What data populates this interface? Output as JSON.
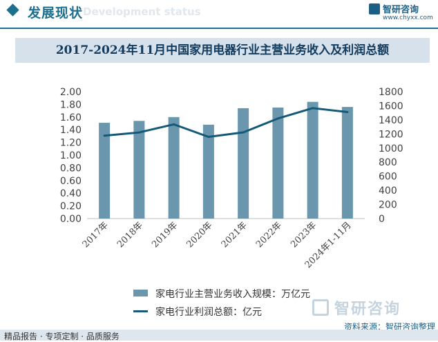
{
  "header": {
    "section_title": "发展现状",
    "section_subtitle": "Development status",
    "logo_name": "智研咨询",
    "logo_url": "www.chyxx.com"
  },
  "chart_data": {
    "type": "bar",
    "title": "2017-2024年11月中国家用电器行业主营业务收入及利润总额",
    "categories": [
      "2017年",
      "2018年",
      "2019年",
      "2020年",
      "2021年",
      "2022年",
      "2023年",
      "2024年1-11月"
    ],
    "series": [
      {
        "name": "家电行业主营业务收入规模：万亿元",
        "type": "bar",
        "axis": "left",
        "color": "#6a97ad",
        "values": [
          1.51,
          1.54,
          1.6,
          1.48,
          1.74,
          1.75,
          1.84,
          1.76
        ]
      },
      {
        "name": "家电行业利润总额：亿元",
        "type": "line",
        "axis": "right",
        "color": "#145a78",
        "values": [
          1176,
          1222,
          1337,
          1159,
          1223,
          1420,
          1567,
          1511
        ]
      }
    ],
    "y_left": {
      "min": 0,
      "max": 2.0,
      "step": 0.2,
      "decimals": 2
    },
    "y_right": {
      "min": 0,
      "max": 1800,
      "step": 200,
      "decimals": 0
    },
    "grid": false,
    "legend_position": "bottom"
  },
  "watermark": "智研咨询",
  "source": "资料来源：智研咨询整理",
  "footer": "精品报告 · 专项定制 · 品质服务"
}
